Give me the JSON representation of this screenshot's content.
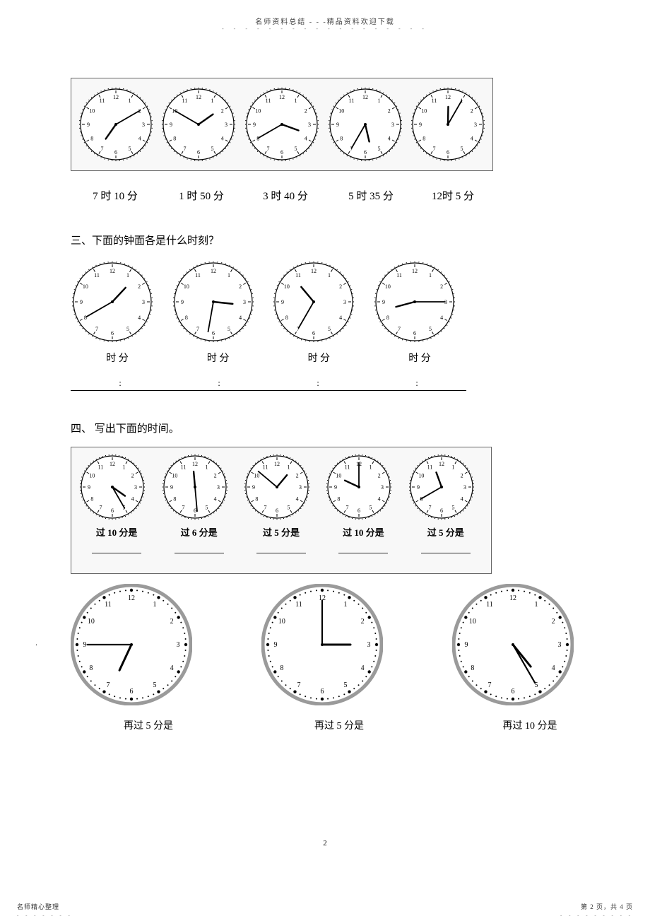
{
  "header": {
    "title_left": "名师资料总结",
    "title_sep": " - - -",
    "title_right": "精品资料欢迎下载"
  },
  "section1": {
    "clocks": [
      {
        "hour_angle": 215,
        "minute_angle": 60,
        "label": "7 时 10 分"
      },
      {
        "hour_angle": 55,
        "minute_angle": 300,
        "label": "1 时 50 分"
      },
      {
        "hour_angle": 110,
        "minute_angle": 240,
        "label": "3 时 40 分"
      },
      {
        "hour_angle": 167,
        "minute_angle": 210,
        "label": "5 时 35 分"
      },
      {
        "hour_angle": 1,
        "minute_angle": 30,
        "label": "12时 5 分"
      }
    ]
  },
  "section2": {
    "heading": "三、下面的钟面各是什么时刻？",
    "clocks": [
      {
        "hour_angle": 43,
        "minute_angle": 240
      },
      {
        "hour_angle": 96,
        "minute_angle": 190
      },
      {
        "hour_angle": 320,
        "minute_angle": 210
      },
      {
        "hour_angle": 255,
        "minute_angle": 90
      }
    ],
    "row_label": "时   分",
    "underline_colons": 4
  },
  "section3": {
    "heading": "四、 写出下面的时间。",
    "top_clocks": [
      {
        "hour_angle": 125,
        "minute_angle": 150,
        "caption": "过 10 分是"
      },
      {
        "hour_angle": 355,
        "minute_angle": 175,
        "caption": "过 6 分是"
      },
      {
        "hour_angle": 40,
        "minute_angle": 310,
        "caption": "过 5 分是"
      },
      {
        "hour_angle": 295,
        "minute_angle": 0,
        "caption": "过 10 分是"
      },
      {
        "hour_angle": 340,
        "minute_angle": 240,
        "caption": "过 5 分是"
      }
    ],
    "bottom_clocks": [
      {
        "hour_angle": 205,
        "minute_angle": 270,
        "caption": "再过 5 分是",
        "style": "dotted"
      },
      {
        "hour_angle": 90,
        "minute_angle": 0,
        "caption": "再过 5 分是",
        "style": "dotted"
      },
      {
        "hour_angle": 141,
        "minute_angle": 150,
        "caption": "再过 10 分是",
        "style": "dotted"
      }
    ]
  },
  "page_number": "2",
  "footer": {
    "left": "名师精心整理",
    "right": "第 2 页，共 4 页"
  },
  "colors": {
    "text": "#000000",
    "bg": "#ffffff",
    "clock_ring": "#9a9a9a",
    "clock_face": "#ffffff",
    "clock_tick": "#000000",
    "clock_hand": "#000000",
    "box_border": "#666666"
  }
}
